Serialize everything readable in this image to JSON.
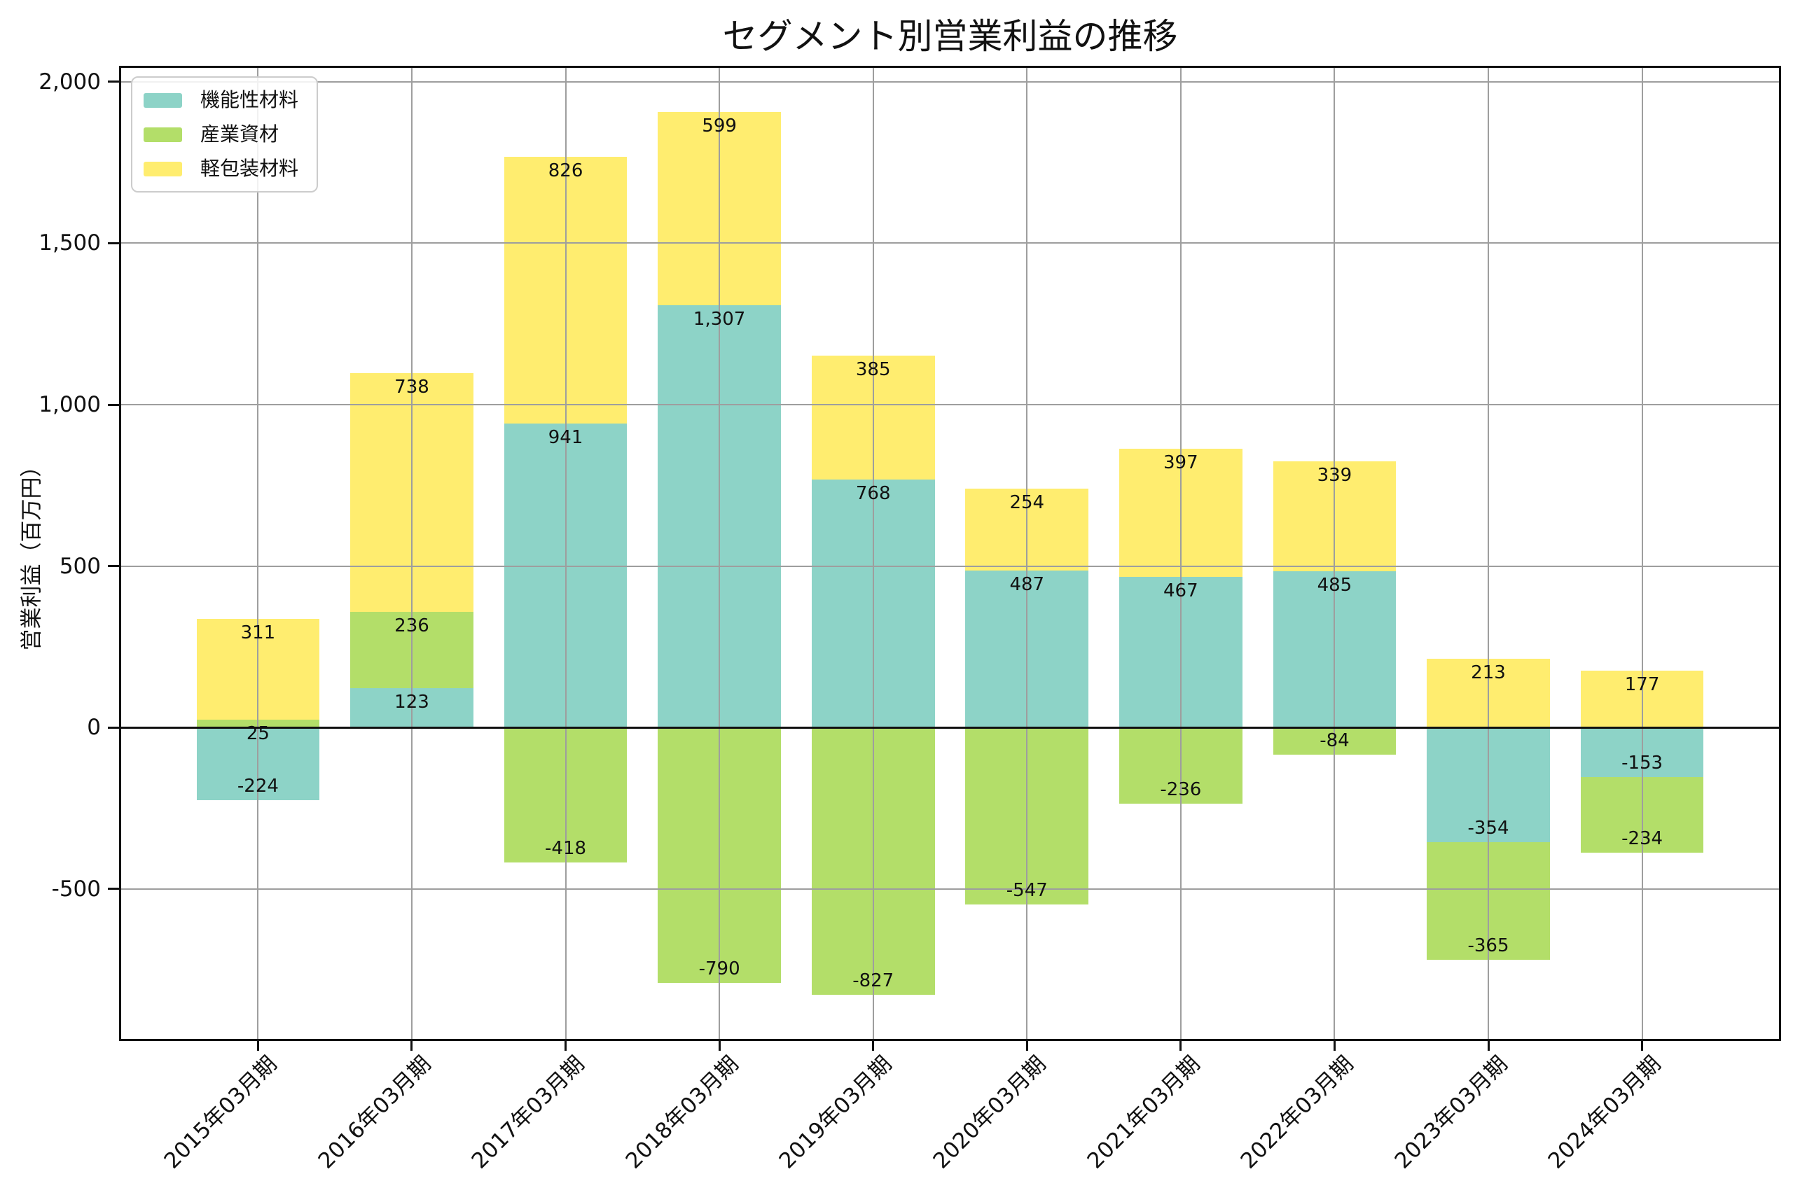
{
  "title": "セグメント別営業利益の推移",
  "y_axis": {
    "label": "営業利益（百万円）",
    "tick_labels": [
      "2,000",
      "1,500",
      "1,000",
      "500",
      "0",
      "-500"
    ]
  },
  "x_axis": {
    "tick_labels": [
      "2015年03月期",
      "2016年03月期",
      "2017年03月期",
      "2018年03月期",
      "2019年03月期",
      "2020年03月期",
      "2021年03月期",
      "2022年03月期",
      "2023年03月期",
      "2024年03月期"
    ]
  },
  "legend": {
    "items": [
      "機能性材料",
      "産業資材",
      "軽包装材料"
    ]
  },
  "chart_data": {
    "type": "bar",
    "stacked": true,
    "title": "セグメント別営業利益の推移",
    "xlabel": "",
    "ylabel": "営業利益（百万円）",
    "categories": [
      "2015年03月期",
      "2016年03月期",
      "2017年03月期",
      "2018年03月期",
      "2019年03月期",
      "2020年03月期",
      "2021年03月期",
      "2022年03月期",
      "2023年03月期",
      "2024年03月期"
    ],
    "series": [
      {
        "name": "機能性材料",
        "color": "#8DD3C7",
        "values": [
          -224,
          123,
          941,
          1307,
          768,
          487,
          467,
          485,
          -354,
          -153
        ]
      },
      {
        "name": "産業資材",
        "color": "#B3DE69",
        "values": [
          25,
          236,
          -418,
          -790,
          -827,
          -547,
          -236,
          -84,
          -365,
          -234
        ]
      },
      {
        "name": "軽包装材料",
        "color": "#FFED6F",
        "values": [
          311,
          738,
          826,
          599,
          385,
          254,
          397,
          339,
          213,
          177
        ]
      }
    ],
    "bar_labels": true,
    "bar_label_format": "thousands-comma",
    "ytick_values": [
      2000,
      1500,
      1000,
      500,
      0,
      -500
    ],
    "ylim": [
      -964,
      2043
    ],
    "grid": true,
    "grid_color": "#9e9e9e",
    "zero_line_color": "#111111",
    "legend_position": "upper left",
    "bar_width_fraction": 0.8
  }
}
